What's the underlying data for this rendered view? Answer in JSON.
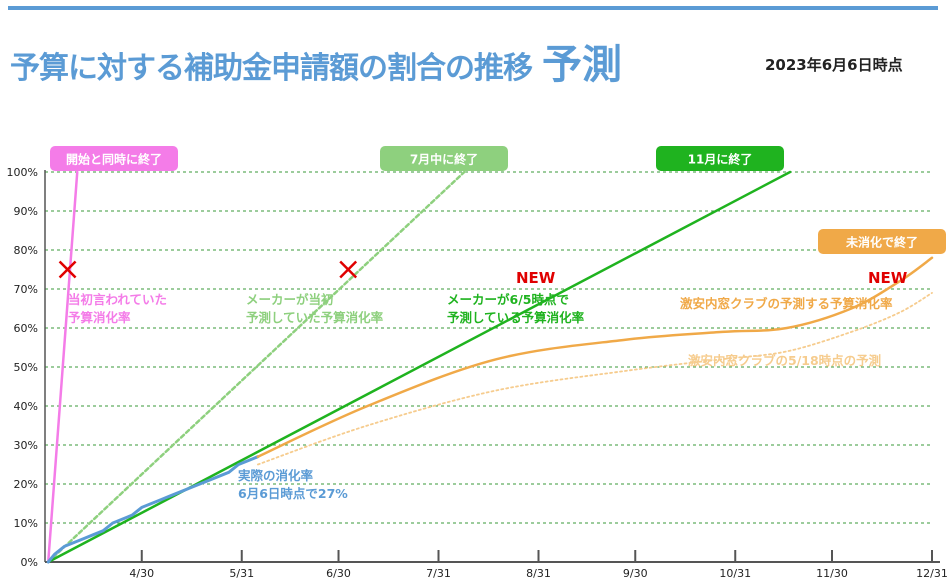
{
  "header": {
    "title": "予算に対する補助金申請額の割合の推移",
    "title_suffix": "予測",
    "as_of": "2023年6月6日時点"
  },
  "chart_data": {
    "type": "line",
    "title": "予算に対する補助金申請額の割合の推移 予測",
    "ylim": [
      0,
      100
    ],
    "y_ticks": [
      0,
      10,
      20,
      30,
      40,
      50,
      60,
      70,
      80,
      90,
      100
    ],
    "y_tick_suffix": "%",
    "x_ticks": [
      "4/30",
      "5/31",
      "6/30",
      "7/31",
      "8/31",
      "9/30",
      "10/31",
      "11/30",
      "12/31"
    ],
    "x_tick_days": [
      30,
      61,
      91,
      122,
      153,
      183,
      214,
      244,
      275
    ],
    "grid": "horizontal-dashed",
    "colors": {
      "accent": "#5b9bd5",
      "pink": "#f47ce8",
      "light_green": "#8ed07e",
      "green": "#1fb31f",
      "orange": "#f0a948",
      "light_orange": "#f6cc8e",
      "actual": "#5b9bd5",
      "red": "#e00000"
    },
    "series": [
      {
        "key": "initial",
        "style": "solid",
        "color": "#f47ce8",
        "x": [
          1,
          10
        ],
        "y": [
          0,
          100
        ]
      },
      {
        "key": "maker_initial",
        "style": "dashed",
        "color": "#8ed07e",
        "x": [
          1,
          130
        ],
        "y": [
          0,
          100
        ]
      },
      {
        "key": "maker_65",
        "style": "solid",
        "color": "#1fb31f",
        "x": [
          1,
          231
        ],
        "y": [
          0,
          100
        ]
      },
      {
        "key": "actual",
        "style": "solid",
        "color": "#5b9bd5",
        "x": [
          1,
          3,
          6,
          9,
          12,
          15,
          18,
          21,
          24,
          27,
          30,
          33,
          36,
          39,
          42,
          45,
          48,
          51,
          54,
          57,
          60,
          63,
          66
        ],
        "y": [
          0,
          2,
          4,
          5,
          6,
          7,
          8,
          10,
          11,
          12,
          14,
          15,
          16,
          17,
          18,
          19,
          20,
          21,
          22,
          23,
          25,
          26,
          27
        ]
      },
      {
        "key": "gekiyasu_forecast",
        "style": "solid",
        "color": "#f0a948",
        "x": [
          66,
          100,
          140,
          180,
          210,
          230,
          250,
          265,
          275
        ],
        "y": [
          27,
          40,
          52,
          57,
          59,
          60,
          65,
          72,
          78
        ]
      },
      {
        "key": "gekiyasu_518",
        "style": "dotted",
        "color": "#f6cc8e",
        "x": [
          66,
          100,
          140,
          180,
          210,
          230,
          250,
          265,
          275
        ],
        "y": [
          25,
          35,
          44,
          49,
          52,
          54,
          59,
          64,
          69
        ]
      }
    ],
    "labels": {
      "initial_box": "開始と同時に終了",
      "july_box": "7月中に終了",
      "nov_box": "11月に終了",
      "unused_box": "未消化で終了",
      "initial_line1": "当初言われていた",
      "initial_line2": "予算消化率",
      "maker_initial_line1": "メーカーが当初",
      "maker_initial_line2": "予測していた予算消化率",
      "maker_65_line1": "メーカーが6/5時点で",
      "maker_65_line2": "予測している予算消化率",
      "gekiyasu_forecast": "激安内窓クラブの予測する予算消化率",
      "gekiyasu_518": "激安内窓クラブの5/18時点の予測",
      "actual_line1": "実際の消化率",
      "actual_line2": "6月6日時点で27%",
      "new1": "NEW",
      "new2": "NEW"
    },
    "markers": [
      {
        "type": "x",
        "color": "#e00000",
        "x": 7,
        "y": 75
      },
      {
        "type": "x",
        "color": "#e00000",
        "x": 94,
        "y": 75
      }
    ]
  }
}
